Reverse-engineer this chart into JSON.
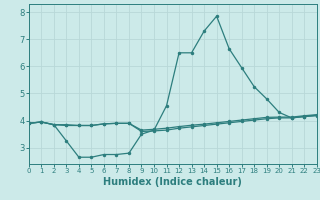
{
  "title": "",
  "xlabel": "Humidex (Indice chaleur)",
  "bg_color": "#cceae9",
  "line_color": "#2d7e7e",
  "grid_color": "#b8d8d8",
  "x_values": [
    0,
    1,
    2,
    3,
    4,
    5,
    6,
    7,
    8,
    9,
    10,
    11,
    12,
    13,
    14,
    15,
    16,
    17,
    18,
    19,
    20,
    21,
    22,
    23
  ],
  "line1": [
    3.9,
    3.95,
    3.85,
    3.25,
    2.65,
    2.65,
    2.75,
    2.75,
    2.8,
    3.5,
    3.65,
    4.55,
    6.5,
    6.5,
    7.3,
    7.85,
    6.65,
    5.95,
    5.25,
    4.8,
    4.3,
    4.1,
    4.15,
    4.2
  ],
  "line2": [
    3.9,
    3.95,
    3.85,
    3.85,
    3.82,
    3.82,
    3.88,
    3.9,
    3.9,
    3.65,
    3.68,
    3.72,
    3.78,
    3.83,
    3.87,
    3.92,
    3.97,
    4.02,
    4.07,
    4.12,
    4.13,
    4.13,
    4.18,
    4.22
  ],
  "line3": [
    3.9,
    3.95,
    3.85,
    3.82,
    3.82,
    3.82,
    3.88,
    3.9,
    3.9,
    3.6,
    3.62,
    3.65,
    3.72,
    3.77,
    3.82,
    3.87,
    3.92,
    3.97,
    4.02,
    4.07,
    4.1,
    4.1,
    4.15,
    4.18
  ],
  "xlim": [
    0,
    23
  ],
  "ylim": [
    2.4,
    8.3
  ],
  "yticks": [
    3,
    4,
    5,
    6,
    7,
    8
  ],
  "xticks": [
    0,
    1,
    2,
    3,
    4,
    5,
    6,
    7,
    8,
    9,
    10,
    11,
    12,
    13,
    14,
    15,
    16,
    17,
    18,
    19,
    20,
    21,
    22,
    23
  ],
  "tick_fontsize": 5.5,
  "xlabel_fontsize": 7,
  "marker_size": 2.5,
  "linewidth": 0.9
}
